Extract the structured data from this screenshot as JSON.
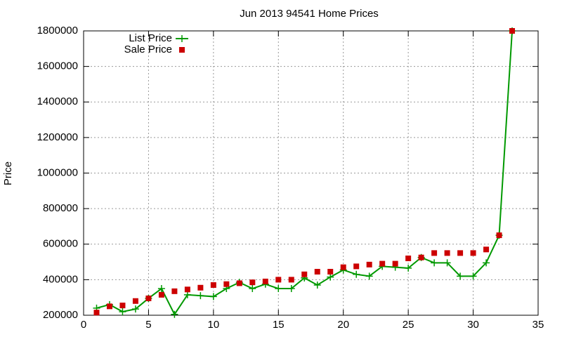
{
  "chart_data": {
    "type": "line",
    "title": "Jun 2013 94541 Home Prices",
    "ylabel": "Price",
    "x": [
      1,
      2,
      3,
      4,
      5,
      6,
      7,
      8,
      9,
      10,
      11,
      12,
      13,
      14,
      15,
      16,
      17,
      18,
      19,
      20,
      21,
      22,
      23,
      24,
      25,
      26,
      27,
      28,
      29,
      30,
      31,
      32,
      33
    ],
    "series": [
      {
        "name": "List Price",
        "color": "#009900",
        "style": "linespoints",
        "values": [
          240000,
          260000,
          220000,
          235000,
          295000,
          350000,
          205000,
          315000,
          310000,
          305000,
          350000,
          385000,
          350000,
          375000,
          350000,
          350000,
          410000,
          370000,
          415000,
          455000,
          430000,
          420000,
          475000,
          470000,
          465000,
          525000,
          495000,
          495000,
          420000,
          420000,
          495000,
          650000,
          1800000
        ]
      },
      {
        "name": "Sale Price",
        "color": "#cc0000",
        "style": "points",
        "values": [
          215000,
          250000,
          255000,
          280000,
          295000,
          315000,
          335000,
          345000,
          355000,
          370000,
          375000,
          380000,
          385000,
          390000,
          400000,
          400000,
          430000,
          445000,
          445000,
          470000,
          475000,
          485000,
          490000,
          490000,
          520000,
          525000,
          550000,
          550000,
          550000,
          550000,
          570000,
          650000,
          1800000
        ]
      }
    ],
    "xlim": [
      0,
      35
    ],
    "xticks": [
      0,
      5,
      10,
      15,
      20,
      25,
      30,
      35
    ],
    "ylim": [
      200000,
      1800000
    ],
    "yticks": [
      200000,
      400000,
      600000,
      800000,
      1000000,
      1200000,
      1400000,
      1600000,
      1800000
    ],
    "grid": true,
    "legend": "top-left"
  }
}
